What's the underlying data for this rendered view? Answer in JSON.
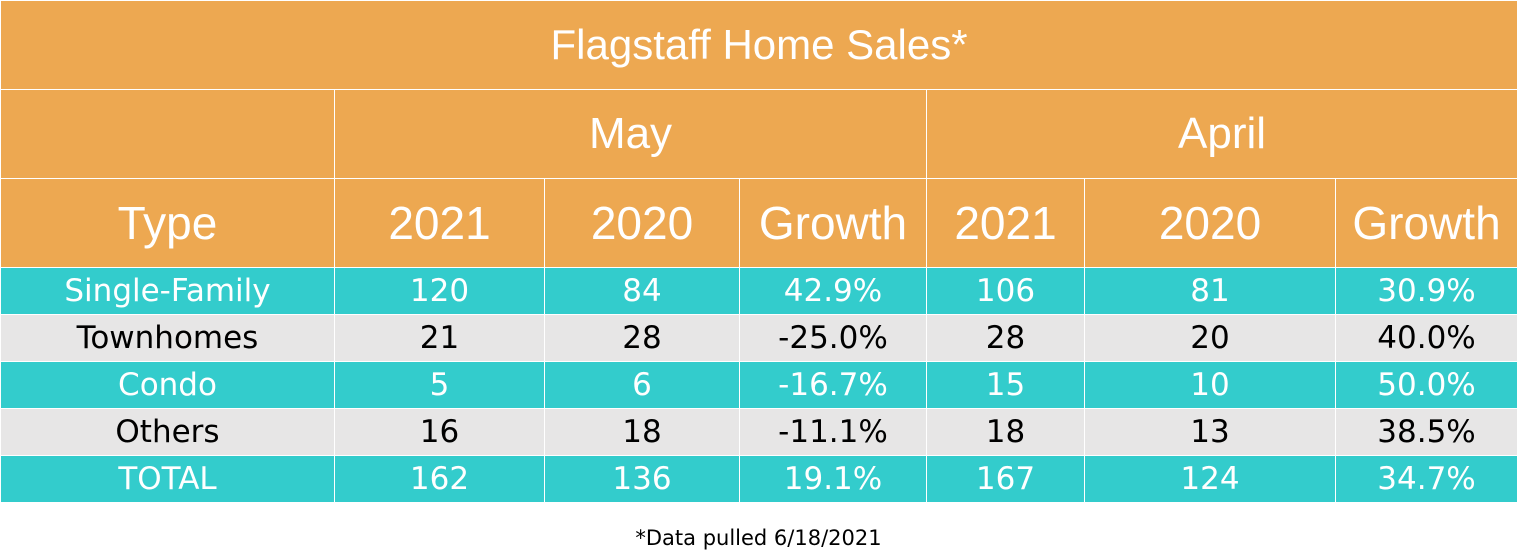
{
  "title": "Flagstaff Home Sales*",
  "months": [
    "May",
    "April"
  ],
  "columns": [
    "Type",
    "2021",
    "2020",
    "Growth",
    "2021",
    "2020",
    "Growth"
  ],
  "rows": [
    [
      "Single-Family",
      "120",
      "84",
      "42.9%",
      "106",
      "81",
      "30.9%"
    ],
    [
      "Townhomes",
      "21",
      "28",
      "-25.0%",
      "28",
      "20",
      "40.0%"
    ],
    [
      "Condo",
      "5",
      "6",
      "-16.7%",
      "15",
      "10",
      "50.0%"
    ],
    [
      "Others",
      "16",
      "18",
      "-11.1%",
      "18",
      "13",
      "38.5%"
    ],
    [
      "TOTAL",
      "162",
      "136",
      "19.1%",
      "167",
      "124",
      "34.7%"
    ]
  ],
  "footnote": "*Data pulled 6/18/2021",
  "colors": {
    "header": "#EDA851",
    "teal_row": "#33CCCC",
    "gray_row": "#E7E6E6"
  },
  "chart_data": {
    "type": "table",
    "title": "Flagstaff Home Sales*",
    "groups": [
      {
        "name": "May",
        "columns": [
          "2021",
          "2020",
          "Growth"
        ]
      },
      {
        "name": "April",
        "columns": [
          "2021",
          "2020",
          "Growth"
        ]
      }
    ],
    "categories": [
      "Single-Family",
      "Townhomes",
      "Condo",
      "Others",
      "TOTAL"
    ],
    "series": [
      {
        "name": "May 2021",
        "values": [
          120,
          21,
          5,
          16,
          162
        ]
      },
      {
        "name": "May 2020",
        "values": [
          84,
          28,
          6,
          18,
          136
        ]
      },
      {
        "name": "May Growth",
        "values": [
          42.9,
          -25.0,
          -16.7,
          -11.1,
          19.1
        ]
      },
      {
        "name": "April 2021",
        "values": [
          106,
          28,
          15,
          18,
          167
        ]
      },
      {
        "name": "April 2020",
        "values": [
          81,
          20,
          10,
          13,
          124
        ]
      },
      {
        "name": "April Growth",
        "values": [
          30.9,
          40.0,
          50.0,
          38.5,
          34.7
        ]
      }
    ]
  }
}
